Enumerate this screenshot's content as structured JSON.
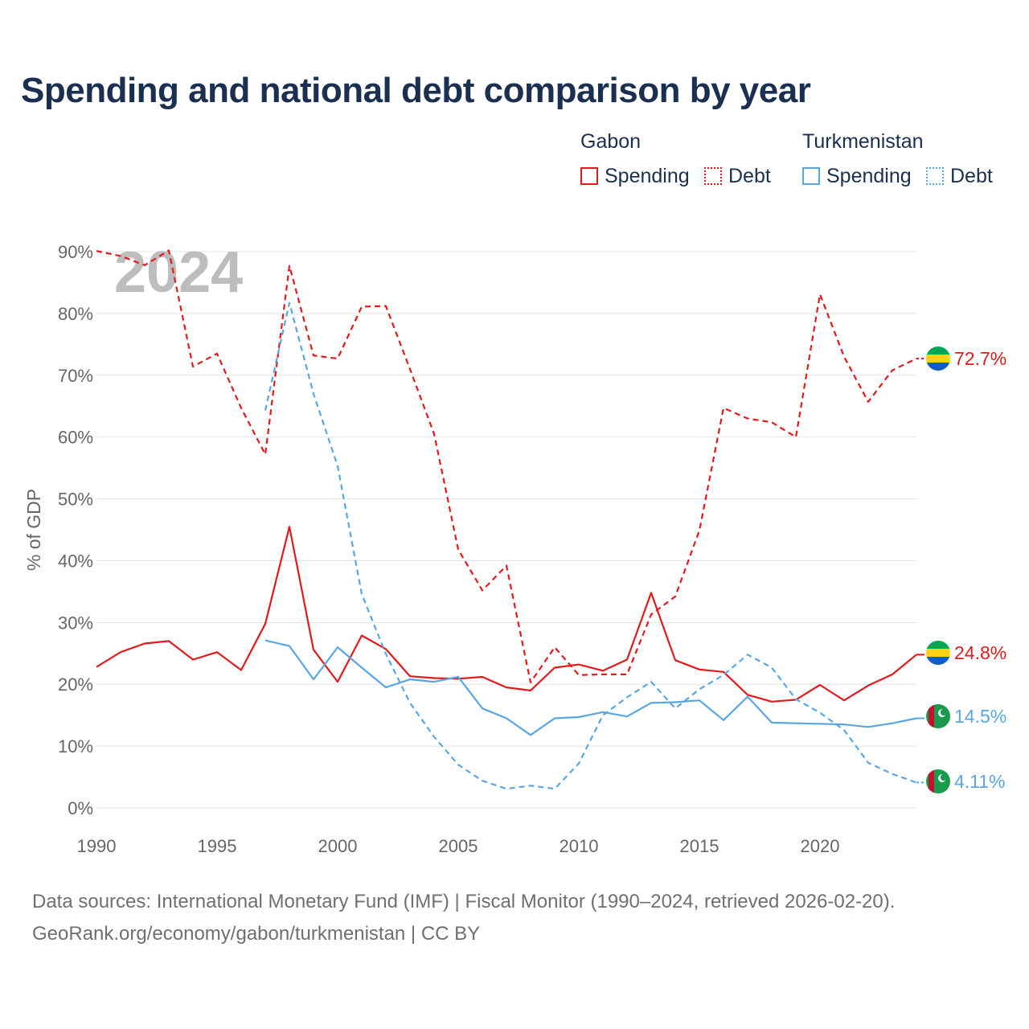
{
  "title": "Spending and national debt comparison by year",
  "legend": {
    "groups": [
      {
        "country": "Gabon",
        "color": "#e31a1c",
        "items": [
          {
            "label": "Spending",
            "style": "solid"
          },
          {
            "label": "Debt",
            "style": "dotted"
          }
        ]
      },
      {
        "country": "Turkmenistan",
        "color": "#5aa6e3",
        "items": [
          {
            "label": "Spending",
            "style": "solid"
          },
          {
            "label": "Debt",
            "style": "dotted"
          }
        ]
      }
    ]
  },
  "chart_data": {
    "type": "line",
    "year_watermark": "2024",
    "ylabel": "% of GDP",
    "ylim": [
      0,
      90
    ],
    "xlim": [
      1990,
      2024
    ],
    "y_ticks": [
      "0%",
      "10%",
      "20%",
      "30%",
      "40%",
      "50%",
      "60%",
      "70%",
      "80%",
      "90%"
    ],
    "x_ticks": [
      "1990",
      "1995",
      "2000",
      "2005",
      "2010",
      "2015",
      "2020"
    ],
    "grid": true,
    "series": [
      {
        "name": "Gabon Spending",
        "country": "Gabon",
        "metric": "Spending",
        "color": "#e31a1c",
        "dashed": false,
        "start_year": 1990,
        "values": [
          22.8,
          25.2,
          26.6,
          27.0,
          24.0,
          25.2,
          22.3,
          29.8,
          45.5,
          25.6,
          20.4,
          27.9,
          25.7,
          21.3,
          21.0,
          20.9,
          21.2,
          19.5,
          19.0,
          22.7,
          23.2,
          22.2,
          24.0,
          34.8,
          23.9,
          22.4,
          22.0,
          18.3,
          17.2,
          17.5,
          19.9,
          17.4,
          19.8,
          21.6,
          24.8
        ],
        "end_label": "24.8%"
      },
      {
        "name": "Gabon Debt",
        "country": "Gabon",
        "metric": "Debt",
        "color": "#e31a1c",
        "dashed": true,
        "start_year": 1990,
        "values": [
          90.1,
          89.3,
          87.8,
          90.2,
          71.4,
          73.5,
          64.7,
          57.2,
          87.7,
          73.2,
          72.7,
          81.1,
          81.2,
          71.0,
          60.5,
          41.8,
          35.2,
          39.2,
          20.3,
          26.0,
          21.5,
          21.6,
          21.6,
          31.3,
          34.2,
          44.9,
          64.7,
          63.0,
          62.4,
          60.0,
          83.1,
          73.0,
          65.7,
          70.8,
          72.7
        ],
        "end_label": "72.7%"
      },
      {
        "name": "Turkmenistan Spending",
        "country": "Turkmenistan",
        "metric": "Spending",
        "color": "#5aa6e3",
        "dashed": false,
        "start_year": 1997,
        "values": [
          27.1,
          26.2,
          20.8,
          26.0,
          22.7,
          19.5,
          20.8,
          20.4,
          21.2,
          16.1,
          14.5,
          11.8,
          14.5,
          14.7,
          15.5,
          14.8,
          17.0,
          17.1,
          17.4,
          14.2,
          18.0,
          13.8,
          13.7,
          13.6,
          13.5,
          13.1,
          13.7,
          14.5
        ],
        "end_label": "14.5%"
      },
      {
        "name": "Turkmenistan Debt",
        "country": "Turkmenistan",
        "metric": "Debt",
        "color": "#5aa6e3",
        "dashed": true,
        "start_year": 1997,
        "values": [
          64.3,
          81.7,
          67.0,
          55.3,
          34.6,
          24.9,
          17.0,
          11.5,
          7.0,
          4.4,
          3.1,
          3.6,
          3.1,
          7.2,
          15.0,
          17.9,
          20.4,
          16.1,
          19.2,
          21.5,
          24.8,
          22.7,
          17.6,
          15.4,
          12.6,
          7.3,
          5.5,
          4.11
        ],
        "end_label": "4.11%"
      }
    ]
  },
  "footer": {
    "sources": "Data sources: International Monetary Fund (IMF) | Fiscal Monitor (1990–2024, retrieved 2026-02-20).",
    "site": "GeoRank.org/economy/gabon/turkmenistan | CC BY"
  }
}
